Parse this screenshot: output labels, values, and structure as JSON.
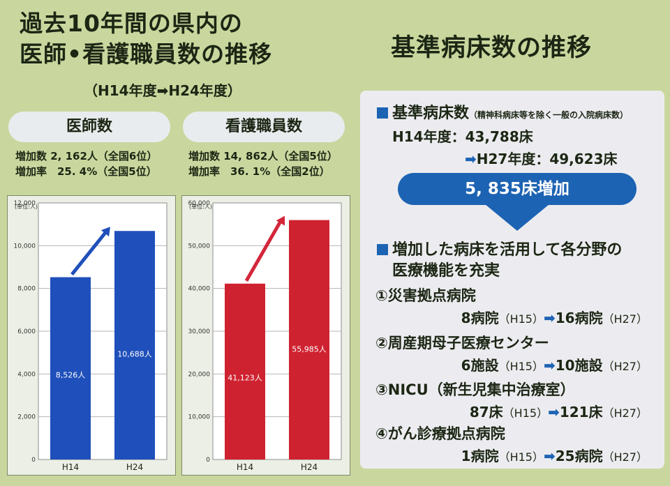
{
  "left": {
    "title_line1": "過去10年間の県内の",
    "title_line2": "医師•看護職員数の推移",
    "subtitle": "（H14年度➡H24年度）"
  },
  "doctors": {
    "label": "医師数",
    "increase": "増加数 2, 162人（全国6位）",
    "rate": "増加率　25. 4%（全国5位）"
  },
  "nurses": {
    "label": "看護職員数",
    "increase": "増加数 14, 862人（全国5位）",
    "rate": "増加率　36. 1%（全国2位）"
  },
  "chart_data": [
    {
      "type": "bar",
      "unit_label": "(単位:人)",
      "categories": [
        "H14",
        "H24"
      ],
      "values": [
        8526,
        10688
      ],
      "value_labels": [
        "8,526人",
        "10,688人"
      ],
      "y_ticks": [
        "0",
        "2,000",
        "4,000",
        "6,000",
        "8,000",
        "10,000",
        "12,000"
      ],
      "ylim": [
        0,
        12000
      ],
      "bar_color": "#1f4fba",
      "arrow_color": "#1f4fba",
      "grid": true
    },
    {
      "type": "bar",
      "unit_label": "(単位:人)",
      "categories": [
        "H14",
        "H24"
      ],
      "values": [
        41123,
        55985
      ],
      "value_labels": [
        "41,123人",
        "55,985人"
      ],
      "y_ticks": [
        "0",
        "10,000",
        "20,000",
        "30,000",
        "40,000",
        "50,000",
        "60,000"
      ],
      "ylim": [
        0,
        60000
      ],
      "bar_color": "#cf2230",
      "arrow_color": "#d4263b",
      "grid": true
    }
  ],
  "right": {
    "title": "基準病床数の推移",
    "beds_head": "基準病床数",
    "beds_note": "（精神科病床等を除く一般の入院病床数）",
    "h14": "H14年度：43,788床",
    "h27_arrow": "➡",
    "h27": "H27年度：49,623床",
    "increase_banner": "5, 835床増加",
    "utilize_line1": "増加した病床を活用して各分野の",
    "utilize_line2": "医療機能を充実",
    "items": [
      {
        "title": "①災害拠点病院",
        "from_value": "8病院",
        "from_year": "（H15）",
        "arrow": "➡",
        "to_value": "16病院",
        "to_year": "（H27）"
      },
      {
        "title": "②周産期母子医療センター",
        "from_value": "6施設",
        "from_year": "（H15）",
        "arrow": "➡",
        "to_value": "10施設",
        "to_year": "（H27）"
      },
      {
        "title": "③NICU（新生児集中治療室）",
        "from_value": "87床",
        "from_year": "（H15）",
        "arrow": "➡",
        "to_value": "121床",
        "to_year": "（H27）"
      },
      {
        "title": "④がん診療拠点病院",
        "from_value": "1病院",
        "from_year": "（H15）",
        "arrow": "➡",
        "to_value": "25病院",
        "to_year": "（H27）"
      }
    ],
    "colors": {
      "accent": "#1d63b3"
    }
  }
}
